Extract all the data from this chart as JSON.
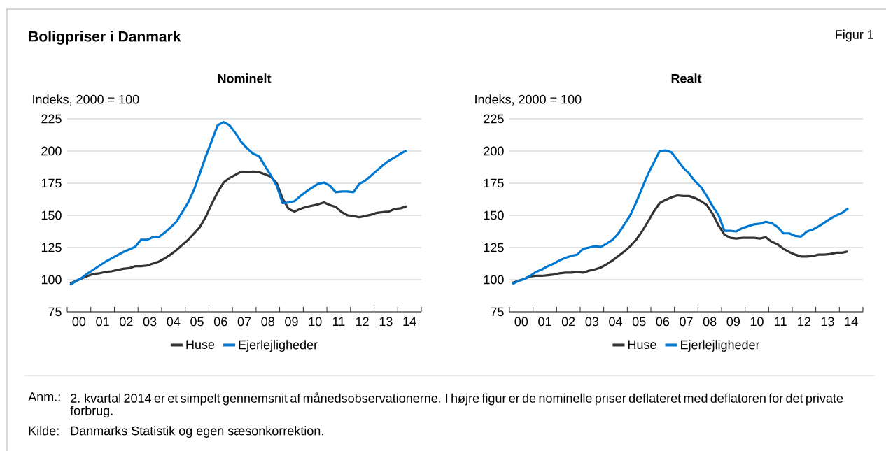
{
  "chart_data": [
    {
      "type": "line",
      "title": "Nominelt",
      "ylabel": "Indeks, 2000 = 100",
      "x": [
        -0.375,
        -0.125,
        0.125,
        0.375,
        0.625,
        0.875,
        1.125,
        1.375,
        1.625,
        1.875,
        2.125,
        2.375,
        2.625,
        2.875,
        3.125,
        3.375,
        3.625,
        3.875,
        4.125,
        4.375,
        4.625,
        4.875,
        5.125,
        5.375,
        5.625,
        5.875,
        6.125,
        6.375,
        6.625,
        6.875,
        7.125,
        7.375,
        7.625,
        7.875,
        8.125,
        8.375,
        8.625,
        8.875,
        9.125,
        9.375,
        9.625,
        9.875,
        10.125,
        10.375,
        10.625,
        10.875,
        11.125,
        11.375,
        11.625,
        11.875,
        12.125,
        12.375,
        12.625,
        12.875,
        13.125,
        13.375,
        13.625,
        13.875
      ],
      "xlim": [
        -0.5,
        14.5
      ],
      "xticks": [
        {
          "value": -0.5,
          "label": null
        },
        {
          "value": 0,
          "label": "00"
        },
        {
          "value": 0.5,
          "label": null
        },
        {
          "value": 1,
          "label": "01"
        },
        {
          "value": 1.5,
          "label": null
        },
        {
          "value": 2,
          "label": "02"
        },
        {
          "value": 2.5,
          "label": null
        },
        {
          "value": 3,
          "label": "03"
        },
        {
          "value": 3.5,
          "label": null
        },
        {
          "value": 4,
          "label": "04"
        },
        {
          "value": 4.5,
          "label": null
        },
        {
          "value": 5,
          "label": "05"
        },
        {
          "value": 5.5,
          "label": null
        },
        {
          "value": 6,
          "label": "06"
        },
        {
          "value": 6.5,
          "label": null
        },
        {
          "value": 7,
          "label": "07"
        },
        {
          "value": 7.5,
          "label": null
        },
        {
          "value": 8,
          "label": "08"
        },
        {
          "value": 8.5,
          "label": null
        },
        {
          "value": 9,
          "label": "09"
        },
        {
          "value": 9.5,
          "label": null
        },
        {
          "value": 10,
          "label": "10"
        },
        {
          "value": 10.5,
          "label": null
        },
        {
          "value": 11,
          "label": "11"
        },
        {
          "value": 11.5,
          "label": null
        },
        {
          "value": 12,
          "label": "12"
        },
        {
          "value": 12.5,
          "label": null
        },
        {
          "value": 13,
          "label": "13"
        },
        {
          "value": 13.5,
          "label": null
        },
        {
          "value": 14,
          "label": "14"
        },
        {
          "value": 14.5,
          "label": null
        }
      ],
      "ylim": [
        75,
        225
      ],
      "yticks": [
        75,
        100,
        125,
        150,
        175,
        200,
        225
      ],
      "grid": "y",
      "legend": "bottom",
      "series": [
        {
          "name": "Huse",
          "color": "#333333",
          "values": [
            97,
            99,
            101,
            103,
            104.5,
            105,
            106,
            106.5,
            107.5,
            108.5,
            109,
            110.5,
            110.5,
            111,
            112.5,
            114,
            116.5,
            119.5,
            123,
            127,
            131,
            136,
            141,
            149,
            159,
            168,
            175.5,
            179,
            181.5,
            184,
            183.5,
            184,
            183.5,
            182,
            180,
            175,
            163,
            155,
            153,
            155,
            156.5,
            157.5,
            158.5,
            160,
            158,
            156.5,
            152.5,
            150,
            149.5,
            148.5,
            149.5,
            150.5,
            152,
            152.5,
            153,
            155,
            155.5,
            157
          ]
        },
        {
          "name": "Ejerlejligheder",
          "color": "#0078d2",
          "values": [
            96,
            99,
            101.5,
            105,
            108,
            111,
            114,
            116.5,
            119,
            121.5,
            123.5,
            125.5,
            131,
            131,
            133,
            133,
            136.5,
            140.5,
            145,
            152.5,
            160,
            170,
            183,
            196,
            208,
            220,
            222.5,
            220,
            214,
            207,
            202,
            198,
            196,
            188.5,
            181,
            173,
            159.5,
            160,
            161,
            165,
            168.5,
            171.5,
            174.5,
            175.5,
            173,
            168,
            168.5,
            168.5,
            168,
            174.5,
            177,
            181,
            185,
            189,
            192.5,
            195,
            198,
            200.5
          ]
        }
      ],
      "annotations": [
        "Boligpriser i Danmark",
        "Figur 1",
        "Anm.:",
        "2. kvartal 2014 er et simpelt gennemsnit af månedsobservationerne. I højre figur er de nominelle priser deflateret med deflatoren for det private forbrug.",
        "Kilde:",
        "Danmarks Statistik og egen sæsonkorrektion."
      ]
    },
    {
      "type": "line",
      "title": "Realt",
      "ylabel": "Indeks, 2000 = 100",
      "x": [
        -0.375,
        -0.125,
        0.125,
        0.375,
        0.625,
        0.875,
        1.125,
        1.375,
        1.625,
        1.875,
        2.125,
        2.375,
        2.625,
        2.875,
        3.125,
        3.375,
        3.625,
        3.875,
        4.125,
        4.375,
        4.625,
        4.875,
        5.125,
        5.375,
        5.625,
        5.875,
        6.125,
        6.375,
        6.625,
        6.875,
        7.125,
        7.375,
        7.625,
        7.875,
        8.125,
        8.375,
        8.625,
        8.875,
        9.125,
        9.375,
        9.625,
        9.875,
        10.125,
        10.375,
        10.625,
        10.875,
        11.125,
        11.375,
        11.625,
        11.875,
        12.125,
        12.375,
        12.625,
        12.875,
        13.125,
        13.375,
        13.625,
        13.875
      ],
      "xlim": [
        -0.5,
        14.5
      ],
      "xticks": [
        {
          "value": -0.5,
          "label": null
        },
        {
          "value": 0,
          "label": "00"
        },
        {
          "value": 0.5,
          "label": null
        },
        {
          "value": 1,
          "label": "01"
        },
        {
          "value": 1.5,
          "label": null
        },
        {
          "value": 2,
          "label": "02"
        },
        {
          "value": 2.5,
          "label": null
        },
        {
          "value": 3,
          "label": "03"
        },
        {
          "value": 3.5,
          "label": null
        },
        {
          "value": 4,
          "label": "04"
        },
        {
          "value": 4.5,
          "label": null
        },
        {
          "value": 5,
          "label": "05"
        },
        {
          "value": 5.5,
          "label": null
        },
        {
          "value": 6,
          "label": "06"
        },
        {
          "value": 6.5,
          "label": null
        },
        {
          "value": 7,
          "label": "07"
        },
        {
          "value": 7.5,
          "label": null
        },
        {
          "value": 8,
          "label": "08"
        },
        {
          "value": 8.5,
          "label": null
        },
        {
          "value": 9,
          "label": "09"
        },
        {
          "value": 9.5,
          "label": null
        },
        {
          "value": 10,
          "label": "10"
        },
        {
          "value": 10.5,
          "label": null
        },
        {
          "value": 11,
          "label": "11"
        },
        {
          "value": 11.5,
          "label": null
        },
        {
          "value": 12,
          "label": "12"
        },
        {
          "value": 12.5,
          "label": null
        },
        {
          "value": 13,
          "label": "13"
        },
        {
          "value": 13.5,
          "label": null
        },
        {
          "value": 14,
          "label": "14"
        },
        {
          "value": 14.5,
          "label": null
        }
      ],
      "ylim": [
        75,
        225
      ],
      "yticks": [
        75,
        100,
        125,
        150,
        175,
        200,
        225
      ],
      "grid": "y",
      "legend": "bottom",
      "series": [
        {
          "name": "Huse",
          "color": "#333333",
          "values": [
            97.5,
            99,
            100.5,
            102.5,
            103,
            103,
            103.5,
            104,
            105,
            105.5,
            105.5,
            106,
            105.5,
            107,
            108,
            109.5,
            112,
            115,
            118.5,
            122,
            126,
            131,
            137.5,
            145,
            153,
            159.5,
            162,
            164,
            165.5,
            165,
            165,
            163.5,
            161,
            158,
            151,
            142,
            135,
            132.5,
            132,
            132.5,
            132.5,
            132.5,
            132,
            133,
            129.5,
            127.5,
            124,
            121.5,
            119.5,
            118,
            118,
            118.5,
            119.5,
            119.5,
            120,
            121,
            121,
            122
          ]
        },
        {
          "name": "Ejerlejligheder",
          "color": "#0078d2",
          "values": [
            96.5,
            99,
            100.5,
            103,
            106,
            108,
            110.5,
            112.5,
            115,
            117,
            118.5,
            119.5,
            124,
            125,
            126,
            125.5,
            128,
            131,
            136,
            143,
            150,
            160,
            171,
            182,
            191,
            200,
            200.5,
            199,
            193,
            187,
            182.5,
            176.5,
            172,
            165,
            157,
            150,
            138,
            138,
            137.5,
            140,
            141.5,
            143,
            143.5,
            145,
            144,
            141,
            136,
            136,
            134,
            133.5,
            137.5,
            139,
            141.5,
            144.5,
            147.5,
            150,
            152,
            155.5
          ]
        }
      ]
    }
  ]
}
